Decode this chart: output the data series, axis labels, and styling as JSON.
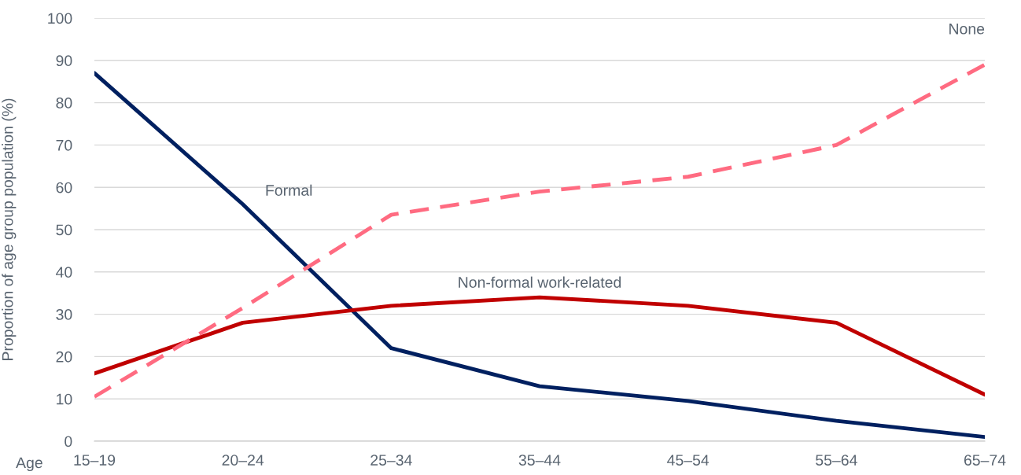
{
  "chart_data": {
    "type": "line",
    "xlabel": "Age",
    "ylabel": "Proportion of age group population (%)",
    "categories": [
      "15–19",
      "20–24",
      "25–34",
      "35–44",
      "45–54",
      "55–64",
      "65–74"
    ],
    "series": [
      {
        "name": "Formal",
        "color": "#002060",
        "values": [
          87,
          56,
          22,
          13,
          9.5,
          4.8,
          1
        ]
      },
      {
        "name": "Non-formal work-related",
        "color": "#c00000",
        "values": [
          16,
          28,
          32,
          34,
          32,
          28,
          11
        ]
      },
      {
        "name": "None",
        "color": "#ff6b81",
        "line_style": "dashed",
        "values": [
          10.5,
          31.5,
          53.5,
          59,
          62.5,
          70,
          89
        ]
      }
    ],
    "ylim": [
      0,
      100
    ],
    "yticks": [
      0,
      10,
      20,
      30,
      40,
      50,
      60,
      70,
      80,
      90,
      100
    ],
    "grid": "y",
    "legend": false
  }
}
